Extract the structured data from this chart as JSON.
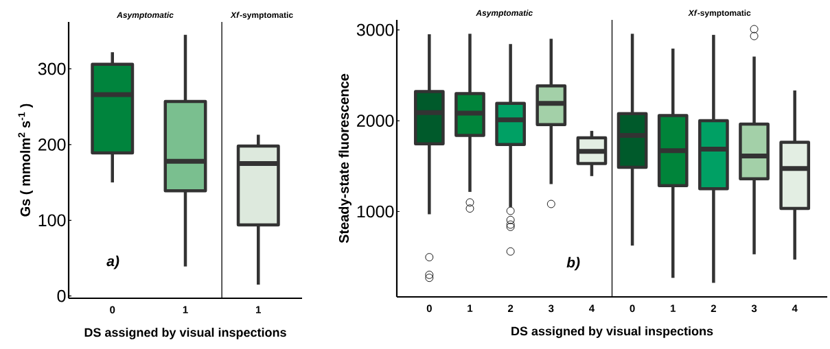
{
  "chart_data": [
    {
      "type": "box",
      "ylabel": "Gs ( mmolm$^{2}$ s$^{-1}$ )",
      "xlabel": "DS assigned by visual inspections",
      "categories": [
        "0",
        "1",
        "1"
      ],
      "boxes": [
        {
          "low": 150,
          "q1": 189,
          "median": 266,
          "q3": 306,
          "high": 322
        },
        {
          "low": 39,
          "q1": 139,
          "median": 178,
          "q3": 257,
          "high": 345
        },
        {
          "low": 15,
          "q1": 94,
          "median": 175,
          "q3": 198,
          "high": 213
        }
      ],
      "colors": [
        "#00843d",
        "#7abf8f",
        "#dde9dd"
      ],
      "ylim": [
        -3,
        362
      ],
      "yticks": [
        0,
        100,
        200,
        300
      ],
      "annotations": [
        "Asymptomatic",
        "*Xf*-symptomatic",
        "a)"
      ]
    },
    {
      "type": "box",
      "ylabel": "Steady-state fluorescence",
      "xlabel": "DS assigned by visual inspections",
      "categories": [
        "0",
        "1",
        "2",
        "3",
        "4",
        "0",
        "1",
        "2",
        "3",
        "4"
      ],
      "boxes": [
        {
          "low": 970,
          "q1": 1745,
          "median": 2089,
          "q3": 2321,
          "high": 2952,
          "outliers": [
            497,
            303,
            270
          ]
        },
        {
          "low": 1216,
          "q1": 1838,
          "median": 2084,
          "q3": 2298,
          "high": 2957,
          "outliers": [
            1100,
            1033
          ]
        },
        {
          "low": 1050,
          "q1": 1737,
          "median": 2009,
          "q3": 2190,
          "high": 2844,
          "outliers": [
            1007,
            907,
            856,
            831,
            560
          ]
        },
        {
          "low": 1302,
          "q1": 1956,
          "median": 2190,
          "q3": 2384,
          "high": 2902,
          "outliers": [
            1083
          ]
        },
        {
          "low": 1390,
          "q1": 1528,
          "median": 1662,
          "q3": 1812,
          "high": 1888
        },
        {
          "low": 625,
          "q1": 1486,
          "median": 1838,
          "q3": 2077,
          "high": 2957
        },
        {
          "low": 270,
          "q1": 1284,
          "median": 1669,
          "q3": 2057,
          "high": 2794
        },
        {
          "low": 215,
          "q1": 1251,
          "median": 1687,
          "q3": 2001,
          "high": 2945
        },
        {
          "low": 529,
          "q1": 1360,
          "median": 1611,
          "q3": 1963,
          "high": 2706,
          "outliers": [
            3008,
            2932
          ]
        },
        {
          "low": 471,
          "q1": 1033,
          "median": 1473,
          "q3": 1762,
          "high": 2333
        }
      ],
      "colors": [
        "#005a2b",
        "#00843a",
        "#00a064",
        "#a3d0a8",
        "#e3eee3",
        "#005a2b",
        "#00843a",
        "#00a064",
        "#a3d0a8",
        "#e3eee3"
      ],
      "ylim": [
        60,
        3110
      ],
      "yticks": [
        1000,
        2000,
        3000
      ],
      "annotations": [
        "Asymptomatic",
        "*Xf*-symptomatic",
        "b)"
      ]
    }
  ]
}
